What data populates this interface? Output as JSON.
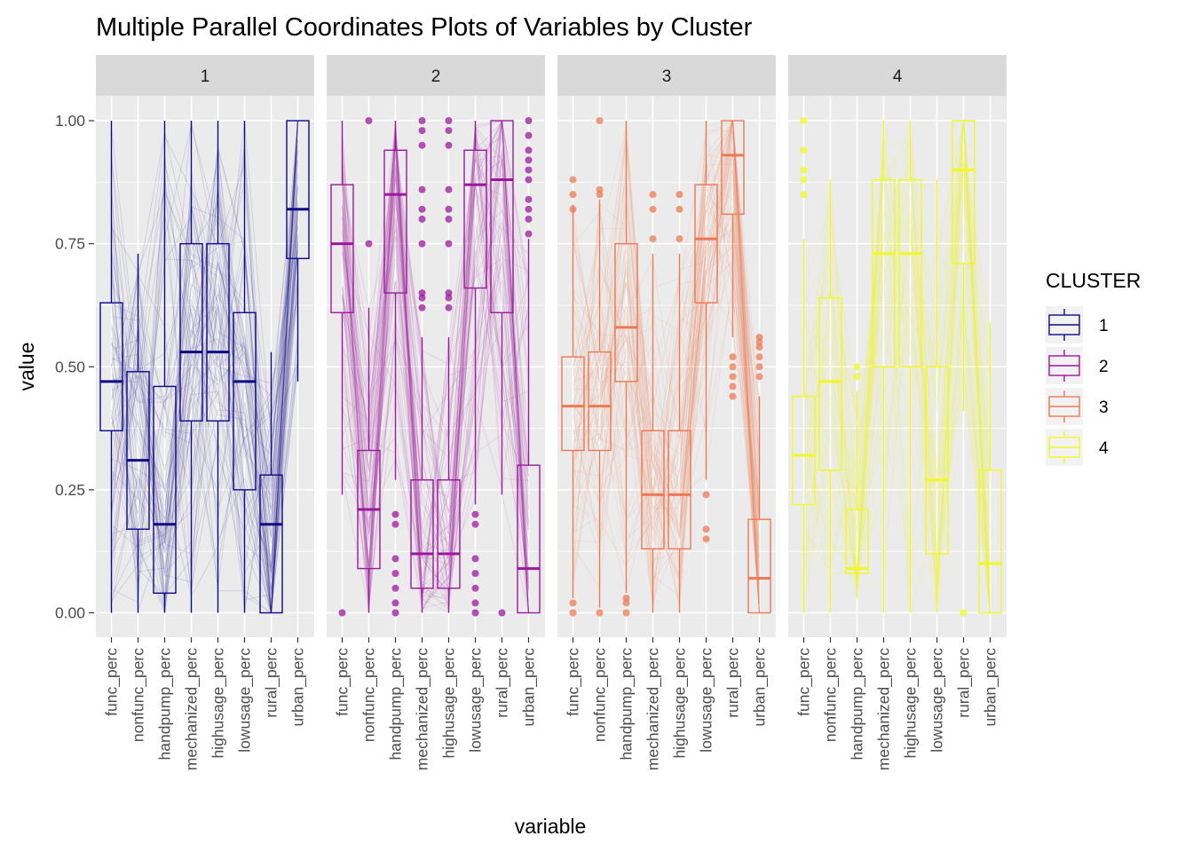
{
  "chart_data": {
    "type": "parallel-coordinates-boxplot",
    "title": "Multiple Parallel Coordinates Plots of Variables by Cluster",
    "xlabel": "variable",
    "ylabel": "value",
    "ylim": [
      0,
      1
    ],
    "y_ticks": [
      0,
      0.25,
      0.5,
      0.75,
      1
    ],
    "y_tick_labels": [
      "0.00",
      "0.25",
      "0.50",
      "0.75",
      "1.00"
    ],
    "variables": [
      "func_perc",
      "nonfunc_perc",
      "handpump_perc",
      "mechanized_perc",
      "highusage_perc",
      "lowusage_perc",
      "rural_perc",
      "urban_perc"
    ],
    "legend": {
      "title": "CLUSTER",
      "position": "right",
      "entries": [
        "1",
        "2",
        "3",
        "4"
      ]
    },
    "grid": true,
    "facets": [
      {
        "label": "1",
        "color": "#0d0887",
        "line_alpha": 0.12,
        "boxes": [
          {
            "variable": "func_perc",
            "min": 0.0,
            "q1": 0.37,
            "median": 0.47,
            "q3": 0.63,
            "max": 1.0,
            "outliers": []
          },
          {
            "variable": "nonfunc_perc",
            "min": 0.0,
            "q1": 0.17,
            "median": 0.31,
            "q3": 0.49,
            "max": 0.73,
            "outliers": []
          },
          {
            "variable": "handpump_perc",
            "min": 0.0,
            "q1": 0.04,
            "median": 0.18,
            "q3": 0.46,
            "max": 1.0,
            "outliers": []
          },
          {
            "variable": "mechanized_perc",
            "min": 0.0,
            "q1": 0.39,
            "median": 0.53,
            "q3": 0.75,
            "max": 1.0,
            "outliers": []
          },
          {
            "variable": "highusage_perc",
            "min": 0.0,
            "q1": 0.39,
            "median": 0.53,
            "q3": 0.75,
            "max": 1.0,
            "outliers": []
          },
          {
            "variable": "lowusage_perc",
            "min": 0.0,
            "q1": 0.25,
            "median": 0.47,
            "q3": 0.61,
            "max": 1.0,
            "outliers": []
          },
          {
            "variable": "rural_perc",
            "min": 0.0,
            "q1": 0.0,
            "median": 0.18,
            "q3": 0.28,
            "max": 0.53,
            "outliers": []
          },
          {
            "variable": "urban_perc",
            "min": 0.47,
            "q1": 0.72,
            "median": 0.82,
            "q3": 1.0,
            "max": 1.0,
            "outliers": []
          }
        ]
      },
      {
        "label": "2",
        "color": "#9c179e",
        "line_alpha": 0.12,
        "boxes": [
          {
            "variable": "func_perc",
            "min": 0.24,
            "q1": 0.61,
            "median": 0.75,
            "q3": 0.87,
            "max": 1.0,
            "outliers": [
              0.0
            ]
          },
          {
            "variable": "nonfunc_perc",
            "min": 0.0,
            "q1": 0.09,
            "median": 0.21,
            "q3": 0.33,
            "max": 0.62,
            "outliers": [
              0.75,
              1.0
            ]
          },
          {
            "variable": "handpump_perc",
            "min": 0.27,
            "q1": 0.65,
            "median": 0.85,
            "q3": 0.94,
            "max": 1.0,
            "outliers": [
              0.0,
              0.02,
              0.05,
              0.08,
              0.11,
              0.18,
              0.2
            ]
          },
          {
            "variable": "mechanized_perc",
            "min": 0.0,
            "q1": 0.05,
            "median": 0.12,
            "q3": 0.27,
            "max": 0.56,
            "outliers": [
              0.62,
              0.64,
              0.65,
              0.75,
              0.8,
              0.82,
              0.86,
              0.95,
              0.98,
              1.0
            ]
          },
          {
            "variable": "highusage_perc",
            "min": 0.0,
            "q1": 0.05,
            "median": 0.12,
            "q3": 0.27,
            "max": 0.56,
            "outliers": [
              0.62,
              0.64,
              0.65,
              0.75,
              0.8,
              0.82,
              0.86,
              0.95,
              0.98,
              1.0
            ]
          },
          {
            "variable": "lowusage_perc",
            "min": 0.22,
            "q1": 0.66,
            "median": 0.87,
            "q3": 0.94,
            "max": 1.0,
            "outliers": [
              0.0,
              0.02,
              0.05,
              0.08,
              0.11,
              0.18,
              0.2
            ]
          },
          {
            "variable": "rural_perc",
            "min": 0.24,
            "q1": 0.61,
            "median": 0.88,
            "q3": 1.0,
            "max": 1.0,
            "outliers": [
              0.0
            ]
          },
          {
            "variable": "urban_perc",
            "min": 0.0,
            "q1": 0.0,
            "median": 0.09,
            "q3": 0.3,
            "max": 0.76,
            "outliers": [
              0.77,
              0.8,
              0.82,
              0.84,
              0.88,
              0.9,
              0.92,
              0.94,
              0.97,
              1.0
            ]
          }
        ]
      },
      {
        "label": "3",
        "color": "#ed7953",
        "line_alpha": 0.12,
        "boxes": [
          {
            "variable": "func_perc",
            "min": 0.03,
            "q1": 0.33,
            "median": 0.42,
            "q3": 0.52,
            "max": 0.83,
            "outliers": [
              0.0,
              0.02,
              0.82,
              0.85,
              0.88
            ]
          },
          {
            "variable": "nonfunc_perc",
            "min": 0.01,
            "q1": 0.33,
            "median": 0.42,
            "q3": 0.53,
            "max": 0.84,
            "outliers": [
              0.0,
              0.85,
              0.86,
              1.0
            ]
          },
          {
            "variable": "handpump_perc",
            "min": 0.04,
            "q1": 0.47,
            "median": 0.58,
            "q3": 0.75,
            "max": 1.0,
            "outliers": [
              0.0,
              0.02,
              0.03
            ]
          },
          {
            "variable": "mechanized_perc",
            "min": 0.0,
            "q1": 0.13,
            "median": 0.24,
            "q3": 0.37,
            "max": 0.73,
            "outliers": [
              0.76,
              0.82,
              0.85
            ]
          },
          {
            "variable": "highusage_perc",
            "min": 0.0,
            "q1": 0.13,
            "median": 0.24,
            "q3": 0.37,
            "max": 0.73,
            "outliers": [
              0.76,
              0.82,
              0.85
            ]
          },
          {
            "variable": "lowusage_perc",
            "min": 0.27,
            "q1": 0.63,
            "median": 0.76,
            "q3": 0.87,
            "max": 1.0,
            "outliers": [
              0.15,
              0.17,
              0.24
            ]
          },
          {
            "variable": "rural_perc",
            "min": 0.56,
            "q1": 0.81,
            "median": 0.93,
            "q3": 1.0,
            "max": 1.0,
            "outliers": [
              0.44,
              0.46,
              0.48,
              0.5,
              0.52
            ]
          },
          {
            "variable": "urban_perc",
            "min": 0.0,
            "q1": 0.0,
            "median": 0.07,
            "q3": 0.19,
            "max": 0.44,
            "outliers": [
              0.48,
              0.5,
              0.52,
              0.54,
              0.55,
              0.56
            ]
          }
        ]
      },
      {
        "label": "4",
        "color": "#f0f921",
        "line_alpha": 0.12,
        "boxes": [
          {
            "variable": "func_perc",
            "min": 0.0,
            "q1": 0.22,
            "median": 0.32,
            "q3": 0.44,
            "max": 0.76,
            "outliers": [
              0.85,
              0.88,
              0.9,
              0.94,
              1.0
            ]
          },
          {
            "variable": "nonfunc_perc",
            "min": 0.0,
            "q1": 0.29,
            "median": 0.47,
            "q3": 0.64,
            "max": 0.88,
            "outliers": []
          },
          {
            "variable": "handpump_perc",
            "min": 0.03,
            "q1": 0.08,
            "median": 0.09,
            "q3": 0.21,
            "max": 0.45,
            "outliers": [
              0.48,
              0.5
            ]
          },
          {
            "variable": "mechanized_perc",
            "min": 0.0,
            "q1": 0.5,
            "median": 0.73,
            "q3": 0.88,
            "max": 1.0,
            "outliers": []
          },
          {
            "variable": "highusage_perc",
            "min": 0.0,
            "q1": 0.5,
            "median": 0.73,
            "q3": 0.88,
            "max": 1.0,
            "outliers": []
          },
          {
            "variable": "lowusage_perc",
            "min": 0.0,
            "q1": 0.12,
            "median": 0.27,
            "q3": 0.5,
            "max": 0.88,
            "outliers": []
          },
          {
            "variable": "rural_perc",
            "min": 0.41,
            "q1": 0.71,
            "median": 0.9,
            "q3": 1.0,
            "max": 1.0,
            "outliers": [
              0.0
            ]
          },
          {
            "variable": "urban_perc",
            "min": 0.0,
            "q1": 0.0,
            "median": 0.1,
            "q3": 0.29,
            "max": 0.59,
            "outliers": []
          }
        ]
      }
    ]
  }
}
